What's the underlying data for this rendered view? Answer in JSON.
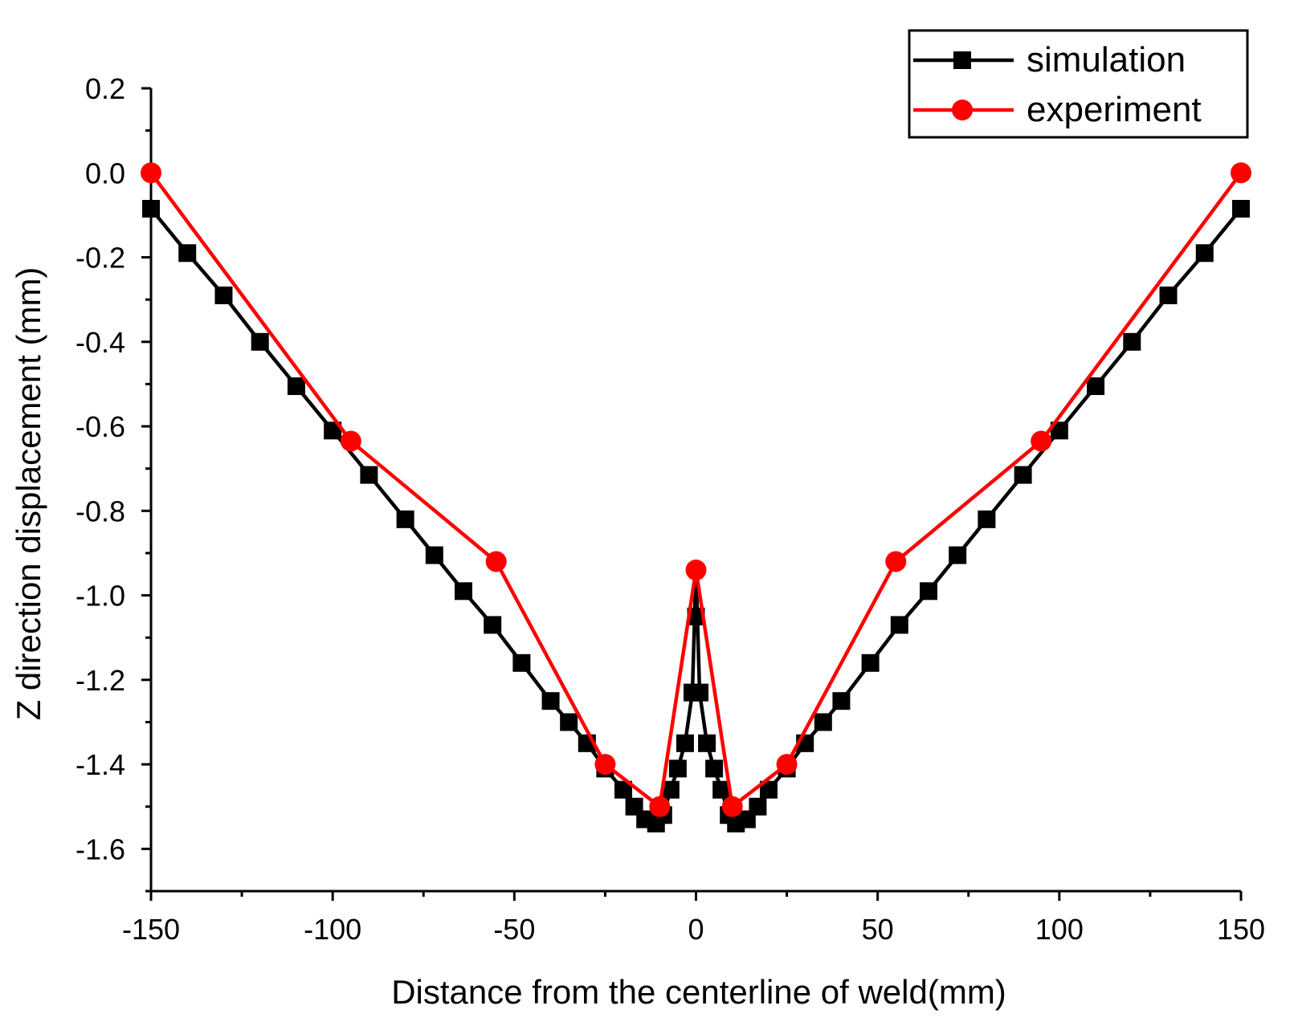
{
  "chart_data": {
    "type": "line",
    "title": "",
    "xlabel": "Distance from the centerline of weld(mm)",
    "ylabel": "Z direction displacement (mm)",
    "xlim": [
      -150,
      150
    ],
    "ylim": [
      -1.7,
      0.2
    ],
    "xticks": [
      -150,
      -100,
      -50,
      0,
      50,
      100,
      150
    ],
    "xtick_labels": [
      "-150",
      "-100",
      "-50",
      "0",
      "50",
      "100",
      "150"
    ],
    "yticks": [
      0.2,
      0.0,
      -0.2,
      -0.4,
      -0.6,
      -0.8,
      -1.0,
      -1.2,
      -1.4,
      -1.6
    ],
    "ytick_labels": [
      "0.2",
      "0.0",
      "-0.2",
      "-0.4",
      "-0.6",
      "-0.8",
      "-1.0",
      "-1.2",
      "-1.4",
      "-1.6"
    ],
    "grid": false,
    "legend_position": "top-right",
    "series": [
      {
        "name": "simulation",
        "color": "#000000",
        "marker": "square",
        "x": [
          -150,
          -140,
          -130,
          -120,
          -110,
          -100,
          -90,
          -80,
          -72,
          -64,
          -56,
          -48,
          -40,
          -35,
          -30,
          -25,
          -20,
          -17,
          -14,
          -11,
          -9,
          -7,
          -5,
          -3,
          -1,
          1,
          3,
          5,
          7,
          9,
          11,
          14,
          17,
          20,
          25,
          30,
          35,
          40,
          48,
          56,
          64,
          72,
          80,
          90,
          100,
          110,
          120,
          130,
          140,
          150
        ],
        "y": [
          -0.085,
          -0.19,
          -0.29,
          -0.4,
          -0.505,
          -0.61,
          -0.715,
          -0.82,
          -0.905,
          -0.99,
          -1.07,
          -1.16,
          -1.25,
          -1.3,
          -1.35,
          -1.41,
          -1.46,
          -1.5,
          -1.53,
          -1.54,
          -1.52,
          -1.46,
          -1.41,
          -1.35,
          -1.23,
          -1.23,
          -1.35,
          -1.41,
          -1.46,
          -1.52,
          -1.54,
          -1.53,
          -1.5,
          -1.46,
          -1.41,
          -1.35,
          -1.3,
          -1.25,
          -1.16,
          -1.07,
          -0.99,
          -0.905,
          -0.82,
          -0.715,
          -0.61,
          -0.505,
          -0.4,
          -0.29,
          -0.19,
          -0.085
        ]
      },
      {
        "name": "experiment",
        "color": "#ff0000",
        "marker": "circle",
        "x": [
          -150,
          -95,
          -55,
          -25,
          -10,
          0,
          10,
          25,
          55,
          95,
          150
        ],
        "y": [
          0.0,
          -0.635,
          -0.92,
          -1.4,
          -1.5,
          -0.94,
          -1.5,
          -1.4,
          -0.92,
          -0.635,
          0.0
        ]
      }
    ],
    "peak_segment": {
      "series": "simulation",
      "x": [
        -1,
        0,
        1
      ],
      "y": [
        -1.23,
        -0.94,
        -1.23
      ],
      "extra_markers": [
        {
          "x": 0,
          "y": -1.05
        }
      ]
    }
  }
}
